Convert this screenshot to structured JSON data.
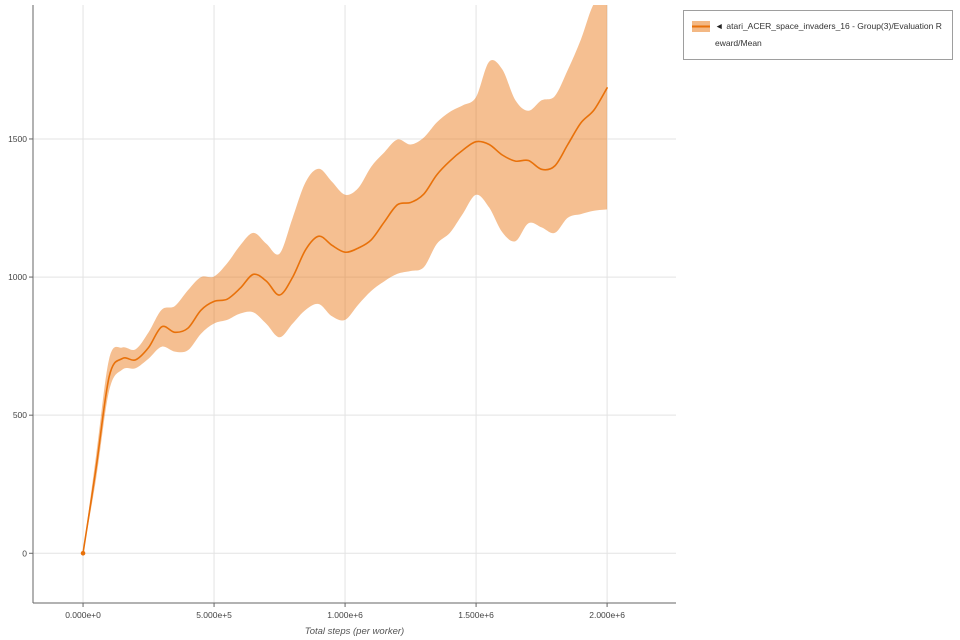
{
  "legend": {
    "toggle_icon": "◄",
    "label": "atari_ACER_space_invaders_16 - Group(3)/Evaluation Reward/Mean"
  },
  "chart_data": {
    "type": "line",
    "title": "",
    "xlabel": "Total steps (per worker)",
    "ylabel": "",
    "legend_position": "top-right-outside",
    "grid": true,
    "xlim": [
      -191000,
      2263000
    ],
    "ylim": [
      -180,
      1985
    ],
    "xticks": {
      "values": [
        0,
        500000,
        1000000,
        1500000,
        2000000
      ],
      "labels": [
        "0.000e+0",
        "5.000e+5",
        "1.000e+6",
        "1.500e+6",
        "2.000e+6"
      ]
    },
    "yticks": {
      "values": [
        0,
        500,
        1000,
        1500
      ],
      "labels": [
        "0",
        "500",
        "1000",
        "1500"
      ]
    },
    "colors": {
      "grid": "#e3e3e3",
      "axis": "#666666",
      "line": "#e8710a",
      "band": "#e8710a",
      "legend_border": "#9e9e9e",
      "text": "#333333"
    },
    "x": [
      0,
      50000,
      100000,
      150000,
      200000,
      250000,
      300000,
      350000,
      400000,
      450000,
      500000,
      550000,
      600000,
      650000,
      700000,
      750000,
      800000,
      850000,
      900000,
      950000,
      1000000,
      1050000,
      1100000,
      1150000,
      1200000,
      1250000,
      1300000,
      1350000,
      1400000,
      1450000,
      1500000,
      1550000,
      1600000,
      1650000,
      1700000,
      1750000,
      1800000,
      1850000,
      1900000,
      1950000,
      2000000
    ],
    "series": [
      {
        "name": "atari_ACER_space_invaders_16 - Group(3)/Evaluation Reward/Mean",
        "line_color": "#e8710a",
        "band_color": "#e8710a",
        "band_opacity": 0.45,
        "mean": [
          0,
          310,
          640,
          705,
          700,
          745,
          820,
          800,
          815,
          880,
          912,
          920,
          960,
          1010,
          985,
          935,
          1000,
          1100,
          1148,
          1115,
          1090,
          1105,
          1135,
          1200,
          1262,
          1270,
          1300,
          1370,
          1420,
          1460,
          1490,
          1480,
          1442,
          1420,
          1422,
          1390,
          1402,
          1480,
          1558,
          1605,
          1685
        ],
        "lower": [
          0,
          270,
          590,
          665,
          670,
          705,
          748,
          730,
          735,
          795,
          832,
          845,
          868,
          872,
          830,
          782,
          832,
          882,
          902,
          858,
          845,
          900,
          950,
          985,
          1012,
          1022,
          1035,
          1120,
          1160,
          1230,
          1298,
          1252,
          1162,
          1130,
          1195,
          1180,
          1160,
          1215,
          1228,
          1240,
          1245
        ],
        "upper": [
          0,
          355,
          705,
          745,
          738,
          800,
          882,
          895,
          952,
          1000,
          1002,
          1050,
          1115,
          1160,
          1120,
          1085,
          1215,
          1345,
          1392,
          1345,
          1298,
          1322,
          1400,
          1452,
          1498,
          1480,
          1505,
          1560,
          1598,
          1622,
          1652,
          1780,
          1752,
          1640,
          1602,
          1640,
          1655,
          1750,
          1860,
          1990,
          2015
        ]
      }
    ]
  }
}
